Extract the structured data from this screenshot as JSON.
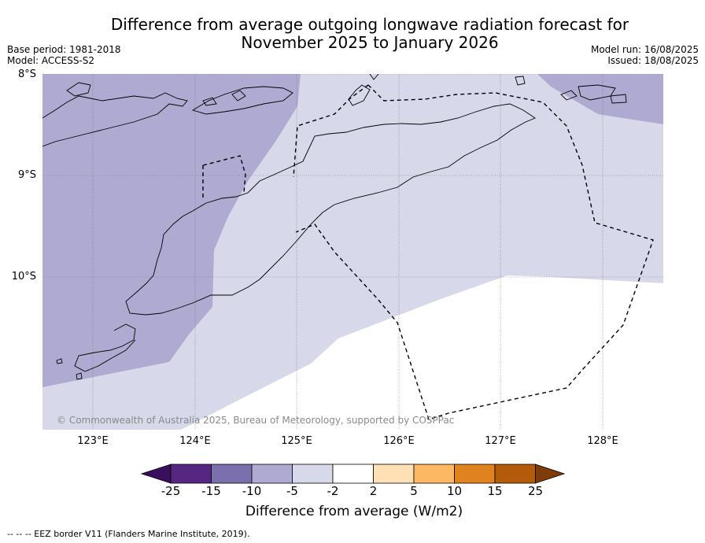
{
  "title_line1": "Difference from average outgoing longwave radiation forecast for",
  "title_line2": "November 2025 to January 2026",
  "base_period": "Base period: 1981-2018",
  "model": "Model: ACCESS-S2",
  "model_run": "Model run: 16/08/2025",
  "issued": "Issued: 18/08/2025",
  "lat_labels": [
    "8°S",
    "9°S",
    "10°S"
  ],
  "lon_labels": [
    "123°E",
    "124°E",
    "125°E",
    "126°E",
    "127°E",
    "128°E"
  ],
  "copyright": "© Commonwealth of Australia 2025, Bureau of Meteorology, supported by COSPPac",
  "colorbar": {
    "ticks": [
      "-25",
      "-15",
      "-10",
      "-5",
      "-2",
      "2",
      "5",
      "10",
      "15",
      "25"
    ],
    "colors": [
      "#3a0f5e",
      "#562683",
      "#7b6fad",
      "#aeaad2",
      "#d7d8ea",
      "#ffffff",
      "#ffe0b4",
      "#fdb863",
      "#e0821e",
      "#b35a0b",
      "#7f3b08"
    ],
    "label": "Difference from average (W/m2)"
  },
  "footnote": "-- -- -- EEZ border V11 (Flanders Marine Institute, 2019)."
}
